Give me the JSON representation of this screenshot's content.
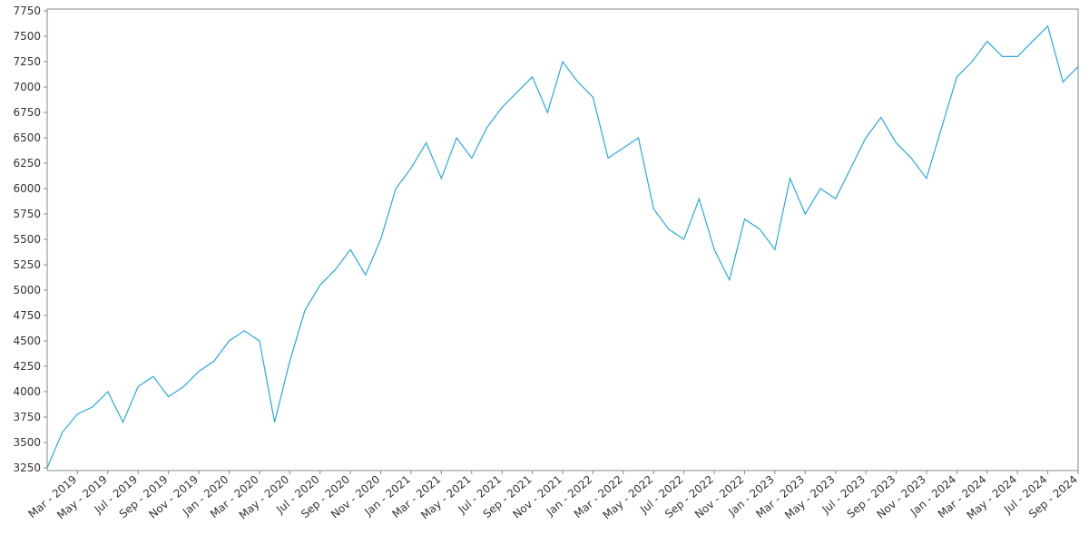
{
  "chart_data": {
    "type": "line",
    "color": "#29a8e0",
    "x": [
      "2019-01",
      "2019-02",
      "2019-03",
      "2019-04",
      "2019-05",
      "2019-06",
      "2019-07",
      "2019-08",
      "2019-09",
      "2019-10",
      "2019-11",
      "2019-12",
      "2020-01",
      "2020-02",
      "2020-03",
      "2020-04",
      "2020-05",
      "2020-06",
      "2020-07",
      "2020-08",
      "2020-09",
      "2020-10",
      "2020-11",
      "2020-12",
      "2021-01",
      "2021-02",
      "2021-03",
      "2021-04",
      "2021-05",
      "2021-06",
      "2021-07",
      "2021-08",
      "2021-09",
      "2021-10",
      "2021-11",
      "2021-12",
      "2022-01",
      "2022-02",
      "2022-03",
      "2022-04",
      "2022-05",
      "2022-06",
      "2022-07",
      "2022-08",
      "2022-09",
      "2022-10",
      "2022-11",
      "2022-12",
      "2023-01",
      "2023-02",
      "2023-03",
      "2023-04",
      "2023-05",
      "2023-06",
      "2023-07",
      "2023-08",
      "2023-09",
      "2023-10",
      "2023-11",
      "2023-12",
      "2024-01",
      "2024-02",
      "2024-03",
      "2024-04",
      "2024-05",
      "2024-06",
      "2024-07",
      "2024-08",
      "2024-09"
    ],
    "values": [
      3250,
      3600,
      3780,
      3850,
      4000,
      3700,
      4050,
      4150,
      3950,
      4050,
      4200,
      4300,
      4500,
      4600,
      4500,
      3700,
      4300,
      4800,
      5050,
      5200,
      5400,
      5150,
      5500,
      6000,
      6200,
      6450,
      6100,
      6500,
      6300,
      6600,
      6800,
      6950,
      7100,
      6750,
      7250,
      7050,
      6900,
      6300,
      6400,
      6500,
      5800,
      5600,
      5500,
      5900,
      5400,
      5100,
      5700,
      5600,
      5400,
      6100,
      5750,
      6000,
      5900,
      6200,
      6500,
      6700,
      6450,
      6300,
      6100,
      6600,
      7100,
      7250,
      7450,
      7300,
      7300,
      7450,
      7600,
      7050,
      7200
    ],
    "ylim": [
      3250,
      7750
    ],
    "yticks": [
      3250,
      3500,
      3750,
      4000,
      4250,
      4500,
      4750,
      5000,
      5250,
      5500,
      5750,
      6000,
      6250,
      6500,
      6750,
      7000,
      7250,
      7500,
      7750
    ],
    "xticks": [
      {
        "value": "2019-03",
        "label": "Mar - 2019"
      },
      {
        "value": "2019-05",
        "label": "May - 2019"
      },
      {
        "value": "2019-07",
        "label": "Jul - 2019"
      },
      {
        "value": "2019-09",
        "label": "Sep - 2019"
      },
      {
        "value": "2019-11",
        "label": "Nov - 2019"
      },
      {
        "value": "2020-01",
        "label": "Jan - 2020"
      },
      {
        "value": "2020-03",
        "label": "Mar - 2020"
      },
      {
        "value": "2020-05",
        "label": "May - 2020"
      },
      {
        "value": "2020-07",
        "label": "Jul - 2020"
      },
      {
        "value": "2020-09",
        "label": "Sep - 2020"
      },
      {
        "value": "2020-11",
        "label": "Nov - 2020"
      },
      {
        "value": "2021-01",
        "label": "Jan - 2021"
      },
      {
        "value": "2021-03",
        "label": "Mar - 2021"
      },
      {
        "value": "2021-05",
        "label": "May - 2021"
      },
      {
        "value": "2021-07",
        "label": "Jul - 2021"
      },
      {
        "value": "2021-09",
        "label": "Sep - 2021"
      },
      {
        "value": "2021-11",
        "label": "Nov - 2021"
      },
      {
        "value": "2022-01",
        "label": "Jan - 2022"
      },
      {
        "value": "2022-03",
        "label": "Mar - 2022"
      },
      {
        "value": "2022-05",
        "label": "May - 2022"
      },
      {
        "value": "2022-07",
        "label": "Jul - 2022"
      },
      {
        "value": "2022-09",
        "label": "Sep - 2022"
      },
      {
        "value": "2022-11",
        "label": "Nov - 2022"
      },
      {
        "value": "2023-01",
        "label": "Jan - 2023"
      },
      {
        "value": "2023-03",
        "label": "Mar - 2023"
      },
      {
        "value": "2023-05",
        "label": "May - 2023"
      },
      {
        "value": "2023-07",
        "label": "Jul - 2023"
      },
      {
        "value": "2023-09",
        "label": "Sep - 2023"
      },
      {
        "value": "2023-11",
        "label": "Nov - 2023"
      },
      {
        "value": "2024-01",
        "label": "Jan - 2024"
      },
      {
        "value": "2024-03",
        "label": "Mar - 2024"
      },
      {
        "value": "2024-05",
        "label": "May - 2024"
      },
      {
        "value": "2024-07",
        "label": "Jul - 2024"
      },
      {
        "value": "2024-09",
        "label": "Sep - 2024"
      }
    ]
  }
}
